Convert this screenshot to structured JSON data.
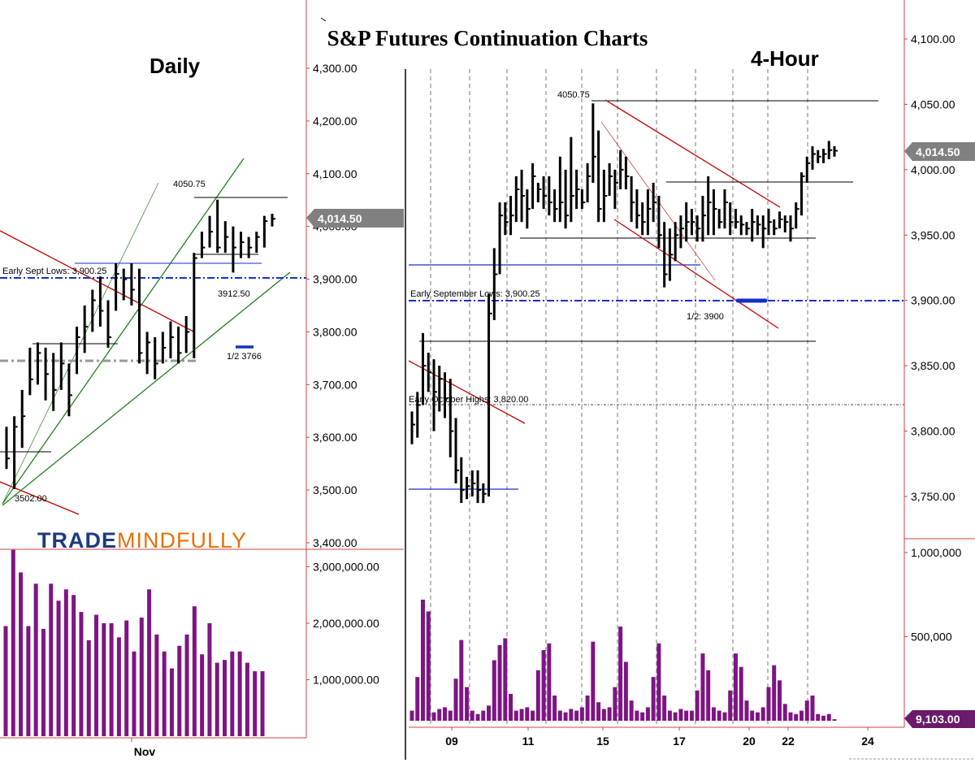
{
  "title": "S&P Futures Continuation Charts",
  "logo": {
    "part1": "TRADE",
    "part2": "MINDFULLY"
  },
  "chart_data": [
    {
      "panel": "Daily",
      "type": "ohlc_bar_with_volume",
      "title": "Daily",
      "price_axis": {
        "min": 3400,
        "max": 4300,
        "ticks": [
          4300,
          4200,
          4100,
          4000,
          3900,
          3800,
          3700,
          3600,
          3500,
          3400
        ],
        "tick_labels": [
          "4,300.00",
          "4,200.00",
          "4,100.00",
          "4,000.00",
          "3,900.00",
          "3,800.00",
          "3,700.00",
          "3,600.00",
          "3,500.00",
          "3,400.00"
        ]
      },
      "volume_axis": {
        "ticks": [
          3000000,
          2000000,
          1000000
        ],
        "tick_labels": [
          "3,000,000.00",
          "2,000,000.00",
          "1,000,000.00"
        ]
      },
      "x_label": "Nov",
      "last_price_label": "4,014.50",
      "bars": [
        {
          "high": 3620,
          "low": 3540,
          "close": 3560
        },
        {
          "high": 3640,
          "low": 3502,
          "close": 3620
        },
        {
          "high": 3690,
          "low": 3580,
          "close": 3640
        },
        {
          "high": 3770,
          "low": 3680,
          "close": 3710
        },
        {
          "high": 3780,
          "low": 3700,
          "close": 3760
        },
        {
          "high": 3770,
          "low": 3670,
          "close": 3720
        },
        {
          "high": 3760,
          "low": 3650,
          "close": 3690
        },
        {
          "high": 3780,
          "low": 3690,
          "close": 3740
        },
        {
          "high": 3740,
          "low": 3640,
          "close": 3680
        },
        {
          "high": 3810,
          "low": 3720,
          "close": 3790
        },
        {
          "high": 3850,
          "low": 3760,
          "close": 3810
        },
        {
          "high": 3880,
          "low": 3800,
          "close": 3860
        },
        {
          "high": 3905,
          "low": 3810,
          "close": 3840
        },
        {
          "high": 3860,
          "low": 3770,
          "close": 3790
        },
        {
          "high": 3930,
          "low": 3840,
          "close": 3910
        },
        {
          "high": 3920,
          "low": 3860,
          "close": 3900
        },
        {
          "high": 3930,
          "low": 3850,
          "close": 3880
        },
        {
          "high": 3920,
          "low": 3740,
          "close": 3760
        },
        {
          "high": 3800,
          "low": 3720,
          "close": 3780
        },
        {
          "high": 3790,
          "low": 3710,
          "close": 3740
        },
        {
          "high": 3800,
          "low": 3740,
          "close": 3770
        },
        {
          "high": 3820,
          "low": 3750,
          "close": 3790
        },
        {
          "high": 3810,
          "low": 3740,
          "close": 3760
        },
        {
          "high": 3830,
          "low": 3760,
          "close": 3800
        },
        {
          "high": 3950,
          "low": 3750,
          "close": 3940
        },
        {
          "high": 3990,
          "low": 3940,
          "close": 3960
        },
        {
          "high": 4020,
          "low": 3960,
          "close": 3990
        },
        {
          "high": 4050.75,
          "low": 3950,
          "close": 3960
        },
        {
          "high": 4010,
          "low": 3950,
          "close": 3980
        },
        {
          "high": 4000,
          "low": 3912.5,
          "close": 3960
        },
        {
          "high": 3990,
          "low": 3940,
          "close": 3970
        },
        {
          "high": 3980,
          "low": 3940,
          "close": 3960
        },
        {
          "high": 3990,
          "low": 3950,
          "close": 3980
        },
        {
          "high": 4020,
          "low": 3960,
          "close": 4010
        },
        {
          "high": 4024,
          "low": 4000,
          "close": 4014.5
        }
      ],
      "volume": [
        1950000,
        3300000,
        2900000,
        1950000,
        2700000,
        1900000,
        2700000,
        2400000,
        2600000,
        2500000,
        2200000,
        1700000,
        2150000,
        2000000,
        2000000,
        1750000,
        2050000,
        1500000,
        2100000,
        2600000,
        1800000,
        1500000,
        1200000,
        1600000,
        1800000,
        2300000,
        1450000,
        2000000,
        1300000,
        1350000,
        1500000,
        1500000,
        1300000,
        1150000,
        1150000
      ],
      "annotations": [
        "Early Sept Lows: 3,900.25",
        "3502.00",
        "4050.75",
        "3912.50",
        "1/2 3766"
      ]
    },
    {
      "panel": "4-Hour",
      "type": "ohlc_bar_with_volume",
      "title": "4-Hour",
      "price_axis": {
        "min": 3725,
        "max": 4110,
        "ticks": [
          4100,
          4050,
          4000,
          3950,
          3900,
          3850,
          3800,
          3750
        ],
        "tick_labels": [
          "4,100.00",
          "4,050.00",
          "4,000.00",
          "3,950.00",
          "3,900.00",
          "3,850.00",
          "3,800.00",
          "3,750.00"
        ]
      },
      "volume_axis": {
        "ticks": [
          1000000,
          500000
        ],
        "tick_labels": [
          "1,000,000",
          "500,000"
        ]
      },
      "x_labels": [
        "09",
        "11",
        "15",
        "17",
        "20",
        "22",
        "24"
      ],
      "last_price_label": "4,014.50",
      "last_volume_label": "9,103.00",
      "bars": [
        {
          "high": 3815,
          "low": 3790,
          "close": 3805
        },
        {
          "high": 3830,
          "low": 3795,
          "close": 3820
        },
        {
          "high": 3875,
          "low": 3820,
          "close": 3850
        },
        {
          "high": 3860,
          "low": 3830,
          "close": 3845
        },
        {
          "high": 3855,
          "low": 3800,
          "close": 3830
        },
        {
          "high": 3850,
          "low": 3815,
          "close": 3840
        },
        {
          "high": 3845,
          "low": 3810,
          "close": 3825
        },
        {
          "high": 3840,
          "low": 3780,
          "close": 3800
        },
        {
          "high": 3810,
          "low": 3760,
          "close": 3770
        },
        {
          "high": 3780,
          "low": 3745,
          "close": 3755
        },
        {
          "high": 3765,
          "low": 3748,
          "close": 3758
        },
        {
          "high": 3770,
          "low": 3750,
          "close": 3760
        },
        {
          "high": 3770,
          "low": 3745,
          "close": 3755
        },
        {
          "high": 3760,
          "low": 3745,
          "close": 3752
        },
        {
          "high": 3905,
          "low": 3750,
          "close": 3890
        },
        {
          "high": 3940,
          "low": 3885,
          "close": 3920
        },
        {
          "high": 3975,
          "low": 3920,
          "close": 3965
        },
        {
          "high": 3975,
          "low": 3950,
          "close": 3960
        },
        {
          "high": 3980,
          "low": 3950,
          "close": 3965
        },
        {
          "high": 3995,
          "low": 3960,
          "close": 3985
        },
        {
          "high": 4000,
          "low": 3960,
          "close": 3980
        },
        {
          "high": 3985,
          "low": 3955,
          "close": 3970
        },
        {
          "high": 4005,
          "low": 3970,
          "close": 3995
        },
        {
          "high": 3990,
          "low": 3975,
          "close": 3985
        },
        {
          "high": 3995,
          "low": 3970,
          "close": 3980
        },
        {
          "high": 3995,
          "low": 3965,
          "close": 3975
        },
        {
          "high": 3985,
          "low": 3960,
          "close": 3970
        },
        {
          "high": 4010,
          "low": 3960,
          "close": 3975
        },
        {
          "high": 4000,
          "low": 3955,
          "close": 3965
        },
        {
          "high": 4025,
          "low": 3960,
          "close": 3980
        },
        {
          "high": 4000,
          "low": 3970,
          "close": 3985
        },
        {
          "high": 3985,
          "low": 3970,
          "close": 3975
        },
        {
          "high": 4005,
          "low": 3975,
          "close": 3995
        },
        {
          "high": 4050.75,
          "low": 3990,
          "close": 4010
        },
        {
          "high": 4030,
          "low": 3960,
          "close": 3970
        },
        {
          "high": 4000,
          "low": 3960,
          "close": 3980
        },
        {
          "high": 4005,
          "low": 3980,
          "close": 3995
        },
        {
          "high": 4000,
          "low": 3970,
          "close": 3990
        },
        {
          "high": 4015,
          "low": 3985,
          "close": 4000
        },
        {
          "high": 4010,
          "low": 3985,
          "close": 3995
        },
        {
          "high": 3995,
          "low": 3960,
          "close": 3975
        },
        {
          "high": 3985,
          "low": 3955,
          "close": 3965
        },
        {
          "high": 3975,
          "low": 3950,
          "close": 3960
        },
        {
          "high": 3985,
          "low": 3950,
          "close": 3970
        },
        {
          "high": 3990,
          "low": 3960,
          "close": 3975
        },
        {
          "high": 3980,
          "low": 3940,
          "close": 3950
        },
        {
          "high": 3960,
          "low": 3910,
          "close": 3920
        },
        {
          "high": 3955,
          "low": 3915,
          "close": 3935
        },
        {
          "high": 3960,
          "low": 3930,
          "close": 3950
        },
        {
          "high": 3965,
          "low": 3940,
          "close": 3955
        },
        {
          "high": 3975,
          "low": 3945,
          "close": 3960
        },
        {
          "high": 3970,
          "low": 3950,
          "close": 3960
        },
        {
          "high": 3965,
          "low": 3945,
          "close": 3955
        },
        {
          "high": 3980,
          "low": 3945,
          "close": 3965
        },
        {
          "high": 3995,
          "low": 3950,
          "close": 3975
        },
        {
          "high": 3985,
          "low": 3950,
          "close": 3970
        },
        {
          "high": 3970,
          "low": 3955,
          "close": 3960
        },
        {
          "high": 3985,
          "low": 3955,
          "close": 3975
        },
        {
          "high": 3975,
          "low": 3950,
          "close": 3960
        },
        {
          "high": 3970,
          "low": 3955,
          "close": 3960
        },
        {
          "high": 3965,
          "low": 3950,
          "close": 3958
        },
        {
          "high": 3960,
          "low": 3950,
          "close": 3955
        },
        {
          "high": 3970,
          "low": 3945,
          "close": 3960
        },
        {
          "high": 3965,
          "low": 3950,
          "close": 3958
        },
        {
          "high": 3965,
          "low": 3940,
          "close": 3955
        },
        {
          "high": 3970,
          "low": 3950,
          "close": 3960
        },
        {
          "high": 3962,
          "low": 3950,
          "close": 3955
        },
        {
          "high": 3968,
          "low": 3955,
          "close": 3962
        },
        {
          "high": 3965,
          "low": 3952,
          "close": 3960
        },
        {
          "high": 3965,
          "low": 3945,
          "close": 3955
        },
        {
          "high": 3975,
          "low": 3955,
          "close": 3970
        },
        {
          "high": 3998,
          "low": 3965,
          "close": 3995
        },
        {
          "high": 4010,
          "low": 3990,
          "close": 4005
        },
        {
          "high": 4018,
          "low": 4000,
          "close": 4012
        },
        {
          "high": 4015,
          "low": 4005,
          "close": 4010
        },
        {
          "high": 4016,
          "low": 4005,
          "close": 4012
        },
        {
          "high": 4022,
          "low": 4008,
          "close": 4015
        },
        {
          "high": 4018,
          "low": 4010,
          "close": 4014.5
        }
      ],
      "volume": [
        60000,
        260000,
        720000,
        650000,
        50000,
        70000,
        80000,
        60000,
        250000,
        480000,
        200000,
        60000,
        40000,
        60000,
        90000,
        360000,
        450000,
        490000,
        160000,
        60000,
        70000,
        80000,
        60000,
        300000,
        420000,
        460000,
        150000,
        60000,
        50000,
        70000,
        60000,
        80000,
        150000,
        470000,
        110000,
        70000,
        80000,
        200000,
        560000,
        350000,
        120000,
        60000,
        50000,
        80000,
        260000,
        460000,
        150000,
        60000,
        50000,
        70000,
        60000,
        60000,
        180000,
        400000,
        300000,
        80000,
        60000,
        50000,
        180000,
        400000,
        320000,
        120000,
        60000,
        50000,
        80000,
        200000,
        330000,
        240000,
        100000,
        50000,
        40000,
        60000,
        120000,
        150000,
        40000,
        30000,
        40000,
        9103
      ]
    }
  ],
  "annotations": {
    "daily": {
      "early_sept_lows": "Early Sept Lows: 3,900.25",
      "low_3502": "3502.00",
      "high_4050": "4050.75",
      "low_3912": "3912.50",
      "half": "1/2 3766"
    },
    "fourhour": {
      "high_4050": "4050.75",
      "early_sept_lows": "Early September Lows: 3,900.25",
      "half": "1/2: 3900",
      "early_oct_highs": "Early October Highs: 3,820.00"
    }
  }
}
